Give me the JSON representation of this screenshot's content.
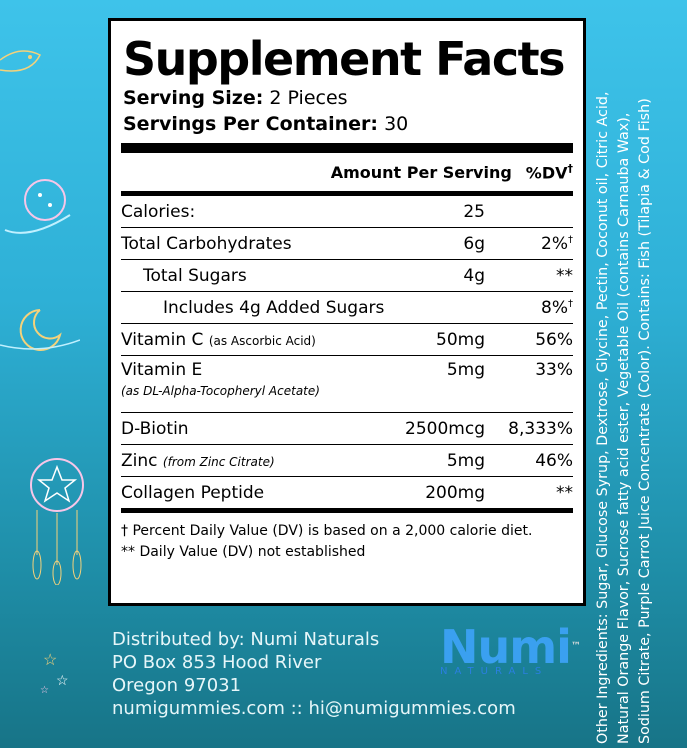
{
  "title": "Supplement Facts",
  "serving_size": {
    "label": "Serving Size:",
    "value": "2 Pieces"
  },
  "servings_per_container": {
    "label": "Servings Per Container:",
    "value": "30"
  },
  "header": {
    "amount": "Amount Per Serving",
    "dv": "%DV",
    "dv_mark": "†"
  },
  "nutrients": [
    {
      "name": "Calories:",
      "amount": "25",
      "dv": ""
    },
    {
      "name": "Total Carbohydrates",
      "amount": "6g",
      "dv": "2%",
      "dv_mark": "†"
    },
    {
      "name": "Total Sugars",
      "amount": "4g",
      "dv": "**"
    },
    {
      "name": "Includes 4g Added Sugars",
      "amount": "",
      "dv": "8%",
      "dv_mark": "†"
    },
    {
      "name": "Vitamin C",
      "qualifier": "(as Ascorbic Acid)",
      "amount": "50mg",
      "dv": "56%"
    },
    {
      "name": "Vitamin E",
      "qualifier": "(as DL-Alpha-Tocopheryl Acetate)",
      "amount": "5mg",
      "dv": "33%"
    },
    {
      "name": "D-Biotin",
      "amount": "2500mcg",
      "dv": "8,333%"
    },
    {
      "name": "Zinc",
      "qualifier": "(from Zinc Citrate)",
      "amount": "5mg",
      "dv": "46%"
    },
    {
      "name": "Collagen Peptide",
      "amount": "200mg",
      "dv": "**"
    }
  ],
  "footnotes": [
    "† Percent Daily Value (DV) is based on a 2,000 calorie diet.",
    "** Daily Value (DV) not established"
  ],
  "distributor": [
    "Distributed by: Numi Naturals",
    "PO Box 853 Hood River",
    "Oregon 97031",
    "numigummies.com :: hi@numigummies.com"
  ],
  "logo": {
    "brand": "Numi",
    "tm": "™",
    "tagline": "NATURALS"
  },
  "ingredients": [
    "Other Ingredients: Sugar, Glucose Syrup, Dextrose, Glycine, Pectin, Coconut oil, Citric Acid,",
    "Natural Orange Flavor, Sucrose fatty acid ester, Vegetable Oil (contains Carnauba Wax),",
    "Sodium Citrate, Purple Carrot Juice Concentrate (Color). Contains: Fish (Tilapia & Cod Fish)"
  ],
  "colors": {
    "background_top": "#3ec3ea",
    "background_bottom": "#177487",
    "logo_blue": "#3aa0f0"
  }
}
